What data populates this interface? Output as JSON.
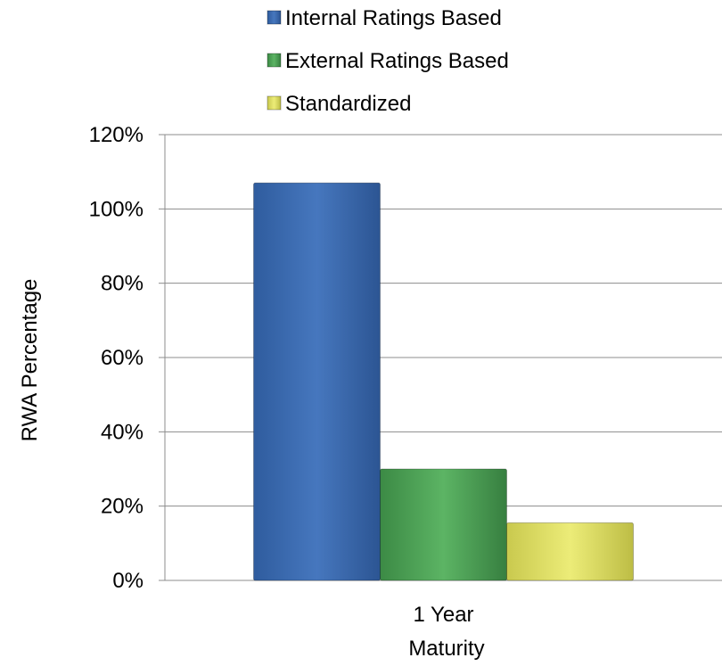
{
  "chart_data": {
    "type": "bar",
    "categories": [
      "1 Year"
    ],
    "series": [
      {
        "name": "Internal Ratings Based",
        "values": [
          107
        ],
        "color": "#3d6fb6"
      },
      {
        "name": "External Ratings Based",
        "values": [
          30
        ],
        "color": "#4ea456"
      },
      {
        "name": "Standardized",
        "values": [
          15.5
        ],
        "color": "#e1e166"
      }
    ],
    "xlabel": "Maturity",
    "ylabel": "RWA Percentage",
    "ylim": [
      0,
      120
    ],
    "yticks": [
      "0%",
      "20%",
      "40%",
      "60%",
      "80%",
      "100%",
      "120%"
    ],
    "ytick_values": [
      0,
      20,
      40,
      60,
      80,
      100,
      120
    ],
    "grid": true,
    "legend_position": "top"
  }
}
